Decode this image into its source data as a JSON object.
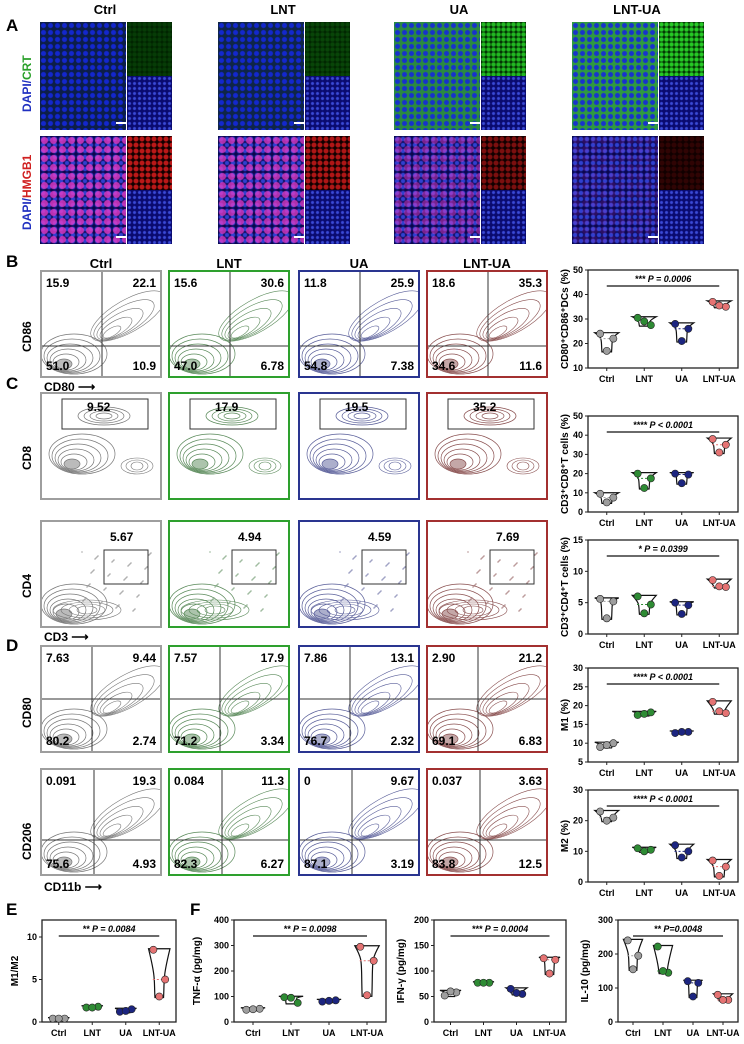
{
  "panel_labels": {
    "a": "A",
    "b": "B",
    "c": "C",
    "d": "D",
    "e": "E",
    "f": "F"
  },
  "groups": [
    "Ctrl",
    "LNT",
    "UA",
    "LNT-UA"
  ],
  "group_colors": {
    "Ctrl": "#9e9e9e",
    "LNT": "#2e8b34",
    "UA": "#1c2580",
    "LNT-UA": "#e57373"
  },
  "flow_border_colors": [
    "#9e9e9e",
    "#2ea02e",
    "#2a3590",
    "#a33030"
  ],
  "panel_a": {
    "row1_label_a": "DAPI/",
    "row1_label_b": "CRT",
    "row2_label_a": "DAPI/",
    "row2_label_b": "HMGB1"
  },
  "panel_b": {
    "y_axis": "CD86",
    "x_axis": "CD80",
    "quadrants": [
      [
        "15.9",
        "22.1",
        "51.0",
        "10.9"
      ],
      [
        "15.6",
        "30.6",
        "47.0",
        "6.78"
      ],
      [
        "11.8",
        "25.9",
        "54.8",
        "7.38"
      ],
      [
        "18.6",
        "35.3",
        "34.6",
        "11.6"
      ]
    ]
  },
  "panel_c": {
    "row1_y_axis": "CD8",
    "row1_gates": [
      "9.52",
      "17.9",
      "19.5",
      "35.2"
    ],
    "row2_y_axis": "CD4",
    "row2_x_axis": "CD3",
    "row2_gates": [
      "5.67",
      "4.94",
      "4.59",
      "7.69"
    ]
  },
  "panel_d": {
    "row1_y_axis": "CD80",
    "row1_quadrants": [
      [
        "7.63",
        "9.44",
        "80.2",
        "2.74"
      ],
      [
        "7.57",
        "17.9",
        "71.2",
        "3.34"
      ],
      [
        "7.86",
        "13.1",
        "76.7",
        "2.32"
      ],
      [
        "2.90",
        "21.2",
        "69.1",
        "6.83"
      ]
    ],
    "row2_y_axis": "CD206",
    "row2_x_axis": "CD11b",
    "row2_quadrants": [
      [
        "0.091",
        "19.3",
        "75.6",
        "4.93"
      ],
      [
        "0.084",
        "11.3",
        "82.3",
        "6.27"
      ],
      [
        "0",
        "9.67",
        "87.1",
        "3.19"
      ],
      [
        "0.037",
        "3.63",
        "83.8",
        "12.5"
      ]
    ]
  },
  "chart_data": [
    {
      "type": "violin-scatter",
      "ylabel": "CD80⁺CD86⁺DCs (%)",
      "ylim": [
        10,
        50
      ],
      "yticks": [
        10,
        20,
        30,
        40,
        50
      ],
      "categories": [
        "Ctrl",
        "LNT",
        "UA",
        "LNT-UA"
      ],
      "significance": "*** P = 0.0006",
      "values": [
        [
          24,
          22,
          17
        ],
        [
          30.5,
          27.5,
          29
        ],
        [
          28,
          26,
          21
        ],
        [
          37,
          35,
          35.5
        ]
      ]
    },
    {
      "type": "violin-scatter",
      "ylabel": "CD3⁺CD8⁺T cells (%)",
      "ylim": [
        0,
        50
      ],
      "yticks": [
        0,
        10,
        20,
        30,
        40,
        50
      ],
      "categories": [
        "Ctrl",
        "LNT",
        "UA",
        "LNT-UA"
      ],
      "significance": "**** P < 0.0001",
      "values": [
        [
          9.5,
          7.5,
          5
        ],
        [
          20,
          17.5,
          12.5
        ],
        [
          20,
          19.5,
          15
        ],
        [
          38,
          35,
          31
        ]
      ]
    },
    {
      "type": "violin-scatter",
      "ylabel": "CD3⁺CD4⁺T cells (%)",
      "ylim": [
        0,
        15
      ],
      "yticks": [
        0,
        5,
        10,
        15
      ],
      "categories": [
        "Ctrl",
        "LNT",
        "UA",
        "LNT-UA"
      ],
      "significance": "* P = 0.0399",
      "values": [
        [
          5.6,
          5.2,
          2.5
        ],
        [
          6,
          4.7,
          3.3
        ],
        [
          5,
          4.6,
          3.2
        ],
        [
          8.6,
          7.5,
          7.6
        ]
      ]
    },
    {
      "type": "violin-scatter",
      "ylabel": "M1 (%)",
      "ylim": [
        5,
        30
      ],
      "yticks": [
        5,
        10,
        15,
        20,
        25,
        30
      ],
      "categories": [
        "Ctrl",
        "LNT",
        "UA",
        "LNT-UA"
      ],
      "significance": "**** P < 0.0001",
      "values": [
        [
          9,
          10,
          9.5
        ],
        [
          17.5,
          18.2,
          17.8
        ],
        [
          12.7,
          13,
          13
        ],
        [
          21,
          18,
          18.5
        ]
      ]
    },
    {
      "type": "violin-scatter",
      "ylabel": "M2 (%)",
      "ylim": [
        0,
        30
      ],
      "yticks": [
        0,
        10,
        20,
        30
      ],
      "categories": [
        "Ctrl",
        "LNT",
        "UA",
        "LNT-UA"
      ],
      "significance": "**** P < 0.0001",
      "values": [
        [
          23,
          21,
          20
        ],
        [
          11,
          10.5,
          10
        ],
        [
          12,
          10,
          8
        ],
        [
          7,
          5,
          2
        ]
      ]
    },
    {
      "type": "violin-scatter",
      "ylabel": "M1/M2",
      "ylim": [
        0,
        12
      ],
      "yticks": [
        0,
        5,
        10
      ],
      "categories": [
        "Ctrl",
        "LNT",
        "UA",
        "LNT-UA"
      ],
      "significance": "** P = 0.0084",
      "values": [
        [
          0.4,
          0.4,
          0.4
        ],
        [
          1.7,
          1.8,
          1.7
        ],
        [
          1.2,
          1.5,
          1.3
        ],
        [
          8.5,
          5,
          3
        ]
      ]
    },
    {
      "type": "violin-scatter",
      "ylabel": "TNF-α (pg/mg)",
      "ylim": [
        0,
        400
      ],
      "yticks": [
        0,
        100,
        200,
        300,
        400
      ],
      "categories": [
        "Ctrl",
        "LNT",
        "UA",
        "LNT-UA"
      ],
      "significance": "** P = 0.0098",
      "values": [
        [
          48,
          52,
          50
        ],
        [
          97,
          75,
          95
        ],
        [
          80,
          85,
          83
        ],
        [
          295,
          240,
          105
        ]
      ]
    },
    {
      "type": "violin-scatter",
      "ylabel": "IFN-γ (pg/mg)",
      "ylim": [
        0,
        200
      ],
      "yticks": [
        0,
        50,
        100,
        150,
        200
      ],
      "categories": [
        "Ctrl",
        "LNT",
        "UA",
        "LNT-UA"
      ],
      "significance": "*** P = 0.0004",
      "values": [
        [
          52,
          58,
          60
        ],
        [
          77,
          77,
          77
        ],
        [
          65,
          55,
          57
        ],
        [
          125,
          122,
          95
        ]
      ]
    },
    {
      "type": "violin-scatter",
      "ylabel": "IL-10 (pg/mg)",
      "ylim": [
        0,
        300
      ],
      "yticks": [
        0,
        100,
        200,
        300
      ],
      "categories": [
        "Ctrl",
        "LNT",
        "UA",
        "LNT-UA"
      ],
      "significance": "** P=0.0048",
      "values": [
        [
          240,
          195,
          155
        ],
        [
          222,
          145,
          150
        ],
        [
          120,
          115,
          75
        ],
        [
          80,
          65,
          65
        ]
      ]
    }
  ]
}
